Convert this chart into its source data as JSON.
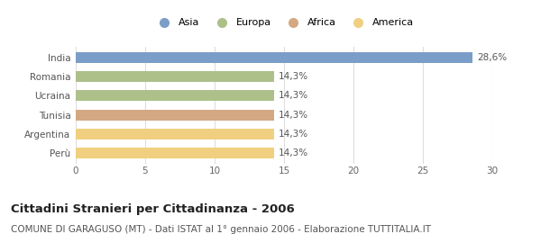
{
  "categories": [
    "India",
    "Romania",
    "Ucraina",
    "Tunisia",
    "Argentina",
    "Perù"
  ],
  "values": [
    28.6,
    14.3,
    14.3,
    14.3,
    14.3,
    14.3
  ],
  "continent_colors": {
    "Asia": "#7b9ec8",
    "Europa": "#adc08a",
    "Africa": "#d4a882",
    "America": "#f0d080"
  },
  "bar_continents": [
    "Asia",
    "Europa",
    "Europa",
    "Africa",
    "America",
    "America"
  ],
  "labels": [
    "28,6%",
    "14,3%",
    "14,3%",
    "14,3%",
    "14,3%",
    "14,3%"
  ],
  "xlim": [
    0,
    30
  ],
  "xticks": [
    0,
    5,
    10,
    15,
    20,
    25,
    30
  ],
  "title": "Cittadini Stranieri per Cittadinanza - 2006",
  "subtitle": "COMUNE DI GARAGUSO (MT) - Dati ISTAT al 1° gennaio 2006 - Elaborazione TUTTITALIA.IT",
  "legend_entries": [
    "Asia",
    "Europa",
    "Africa",
    "America"
  ],
  "legend_colors": [
    "#7b9ec8",
    "#adc08a",
    "#d4a882",
    "#f0d080"
  ],
  "background_color": "#ffffff",
  "bar_height": 0.55,
  "label_fontsize": 7.5,
  "title_fontsize": 9.5,
  "subtitle_fontsize": 7.5,
  "tick_fontsize": 7.5
}
